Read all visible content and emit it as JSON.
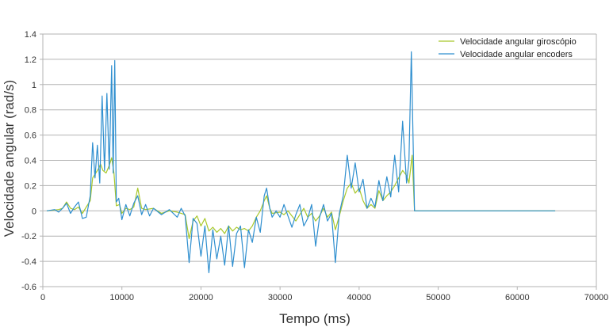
{
  "chart_data": {
    "type": "line",
    "xlabel": "Tempo (ms)",
    "ylabel": "Velocidade angular (rad/s)",
    "xlim": [
      0,
      70000
    ],
    "ylim": [
      -0.6,
      1.4
    ],
    "x_ticks": [
      0,
      10000,
      20000,
      30000,
      40000,
      50000,
      60000,
      70000
    ],
    "y_ticks": [
      -0.6,
      -0.4,
      -0.2,
      0,
      0.2,
      0.4,
      0.6,
      0.8,
      1,
      1.2,
      1.4
    ],
    "grid": "horizontal",
    "legend_position": "top-right",
    "series": [
      {
        "name": "Velocidade angular giroscópio",
        "color": "#a8c82a",
        "points": [
          [
            500,
            0
          ],
          [
            2000,
            0.01
          ],
          [
            2500,
            0.02
          ],
          [
            3000,
            0.07
          ],
          [
            3500,
            0.02
          ],
          [
            4000,
            0.01
          ],
          [
            4500,
            0.03
          ],
          [
            5000,
            -0.02
          ],
          [
            5500,
            0.03
          ],
          [
            6000,
            0.08
          ],
          [
            6300,
            0.26
          ],
          [
            6700,
            0.3
          ],
          [
            7000,
            0.33
          ],
          [
            7300,
            0.37
          ],
          [
            7600,
            0.32
          ],
          [
            8000,
            0.3
          ],
          [
            8400,
            0.36
          ],
          [
            8700,
            0.42
          ],
          [
            9000,
            0.3
          ],
          [
            9300,
            0.04
          ],
          [
            9700,
            0.05
          ],
          [
            10000,
            -0.02
          ],
          [
            10500,
            0.02
          ],
          [
            11000,
            0.01
          ],
          [
            11500,
            0.03
          ],
          [
            12000,
            0.18
          ],
          [
            12500,
            0.02
          ],
          [
            13000,
            0.01
          ],
          [
            14000,
            0.02
          ],
          [
            15000,
            -0.02
          ],
          [
            16000,
            0.0
          ],
          [
            17000,
            -0.01
          ],
          [
            18000,
            -0.03
          ],
          [
            18500,
            -0.22
          ],
          [
            19000,
            -0.08
          ],
          [
            19500,
            -0.04
          ],
          [
            20000,
            -0.12
          ],
          [
            20500,
            -0.06
          ],
          [
            21000,
            -0.16
          ],
          [
            21500,
            -0.13
          ],
          [
            22000,
            -0.17
          ],
          [
            22500,
            -0.14
          ],
          [
            23000,
            -0.18
          ],
          [
            23500,
            -0.12
          ],
          [
            24000,
            -0.16
          ],
          [
            24500,
            -0.13
          ],
          [
            25000,
            -0.15
          ],
          [
            25500,
            -0.14
          ],
          [
            26000,
            -0.16
          ],
          [
            26500,
            -0.12
          ],
          [
            27000,
            -0.05
          ],
          [
            27500,
            0.0
          ],
          [
            28000,
            0.08
          ],
          [
            28300,
            0.12
          ],
          [
            28700,
            0.02
          ],
          [
            29000,
            -0.02
          ],
          [
            30000,
            -0.01
          ],
          [
            30500,
            -0.03
          ],
          [
            31000,
            0.0
          ],
          [
            31500,
            -0.04
          ],
          [
            32000,
            -0.08
          ],
          [
            32500,
            -0.03
          ],
          [
            33000,
            0.02
          ],
          [
            33500,
            -0.05
          ],
          [
            34000,
            -0.02
          ],
          [
            34500,
            -0.08
          ],
          [
            35000,
            -0.04
          ],
          [
            35500,
            0.02
          ],
          [
            36000,
            -0.05
          ],
          [
            36500,
            -0.01
          ],
          [
            37000,
            -0.15
          ],
          [
            37500,
            -0.04
          ],
          [
            38000,
            0.08
          ],
          [
            38500,
            0.18
          ],
          [
            39000,
            0.22
          ],
          [
            39500,
            0.14
          ],
          [
            40000,
            0.18
          ],
          [
            40500,
            0.08
          ],
          [
            41000,
            0.02
          ],
          [
            41500,
            0.05
          ],
          [
            42000,
            0.02
          ],
          [
            42500,
            0.16
          ],
          [
            43000,
            0.08
          ],
          [
            43500,
            0.12
          ],
          [
            44000,
            0.15
          ],
          [
            44500,
            0.2
          ],
          [
            45000,
            0.26
          ],
          [
            45500,
            0.32
          ],
          [
            46000,
            0.28
          ],
          [
            46300,
            0.22
          ],
          [
            46700,
            0.44
          ],
          [
            47000,
            0.0
          ],
          [
            48000,
            0.0
          ],
          [
            50000,
            0.0
          ],
          [
            52000,
            0.0
          ],
          [
            55000,
            0.0
          ],
          [
            58000,
            0.0
          ],
          [
            61000,
            0.0
          ],
          [
            64000,
            0.0
          ],
          [
            64800,
            0.0
          ]
        ]
      },
      {
        "name": "Velocidade angular encoders",
        "color": "#2f8fcf",
        "points": [
          [
            500,
            0
          ],
          [
            1500,
            0.01
          ],
          [
            2000,
            -0.01
          ],
          [
            2500,
            0.02
          ],
          [
            3000,
            0.06
          ],
          [
            3500,
            -0.02
          ],
          [
            4000,
            0.03
          ],
          [
            4500,
            0.07
          ],
          [
            5000,
            -0.06
          ],
          [
            5500,
            -0.05
          ],
          [
            6000,
            0.12
          ],
          [
            6300,
            0.54
          ],
          [
            6600,
            0.26
          ],
          [
            6900,
            0.52
          ],
          [
            7200,
            0.22
          ],
          [
            7500,
            0.91
          ],
          [
            7800,
            0.32
          ],
          [
            8100,
            0.93
          ],
          [
            8400,
            0.33
          ],
          [
            8700,
            1.15
          ],
          [
            8900,
            0.3
          ],
          [
            9100,
            1.19
          ],
          [
            9300,
            0.07
          ],
          [
            9600,
            0.1
          ],
          [
            10000,
            -0.07
          ],
          [
            10500,
            0.05
          ],
          [
            11000,
            -0.04
          ],
          [
            11500,
            0.06
          ],
          [
            12000,
            0.12
          ],
          [
            12500,
            -0.03
          ],
          [
            13000,
            0.05
          ],
          [
            13500,
            -0.04
          ],
          [
            14000,
            0.02
          ],
          [
            15000,
            -0.03
          ],
          [
            16000,
            0.01
          ],
          [
            17000,
            -0.05
          ],
          [
            17500,
            0.02
          ],
          [
            18000,
            -0.04
          ],
          [
            18500,
            -0.41
          ],
          [
            19000,
            -0.06
          ],
          [
            19500,
            -0.1
          ],
          [
            20000,
            -0.36
          ],
          [
            20500,
            -0.12
          ],
          [
            21000,
            -0.49
          ],
          [
            21500,
            -0.15
          ],
          [
            22000,
            -0.38
          ],
          [
            22500,
            -0.2
          ],
          [
            23000,
            -0.43
          ],
          [
            23500,
            -0.12
          ],
          [
            24000,
            -0.44
          ],
          [
            24500,
            -0.18
          ],
          [
            25000,
            -0.12
          ],
          [
            25500,
            -0.45
          ],
          [
            26000,
            -0.15
          ],
          [
            26500,
            -0.25
          ],
          [
            27000,
            -0.05
          ],
          [
            27500,
            -0.17
          ],
          [
            28000,
            0.12
          ],
          [
            28300,
            0.18
          ],
          [
            28700,
            0.02
          ],
          [
            29000,
            -0.05
          ],
          [
            29500,
            0.0
          ],
          [
            30000,
            -0.05
          ],
          [
            30500,
            0.05
          ],
          [
            31000,
            -0.04
          ],
          [
            31500,
            -0.13
          ],
          [
            32000,
            -0.03
          ],
          [
            32500,
            0.05
          ],
          [
            33000,
            -0.12
          ],
          [
            33500,
            -0.06
          ],
          [
            34000,
            0.05
          ],
          [
            34500,
            -0.28
          ],
          [
            35000,
            -0.05
          ],
          [
            35500,
            0.05
          ],
          [
            36000,
            -0.08
          ],
          [
            36500,
            -0.02
          ],
          [
            37000,
            -0.41
          ],
          [
            37500,
            -0.02
          ],
          [
            38000,
            0.12
          ],
          [
            38500,
            0.44
          ],
          [
            39000,
            0.18
          ],
          [
            39500,
            0.38
          ],
          [
            40000,
            0.15
          ],
          [
            40500,
            0.25
          ],
          [
            41000,
            0.02
          ],
          [
            41500,
            0.1
          ],
          [
            42000,
            0.03
          ],
          [
            42500,
            0.24
          ],
          [
            43000,
            0.08
          ],
          [
            43500,
            0.27
          ],
          [
            44000,
            0.11
          ],
          [
            44500,
            0.44
          ],
          [
            45000,
            0.15
          ],
          [
            45500,
            0.71
          ],
          [
            46000,
            0.22
          ],
          [
            46300,
            0.4
          ],
          [
            46600,
            1.26
          ],
          [
            47000,
            0.0
          ],
          [
            48000,
            0.0
          ],
          [
            50000,
            0.0
          ],
          [
            53000,
            0.0
          ],
          [
            56000,
            0.0
          ],
          [
            59000,
            0.0
          ],
          [
            62000,
            0.0
          ],
          [
            64800,
            0.0
          ]
        ]
      }
    ]
  }
}
